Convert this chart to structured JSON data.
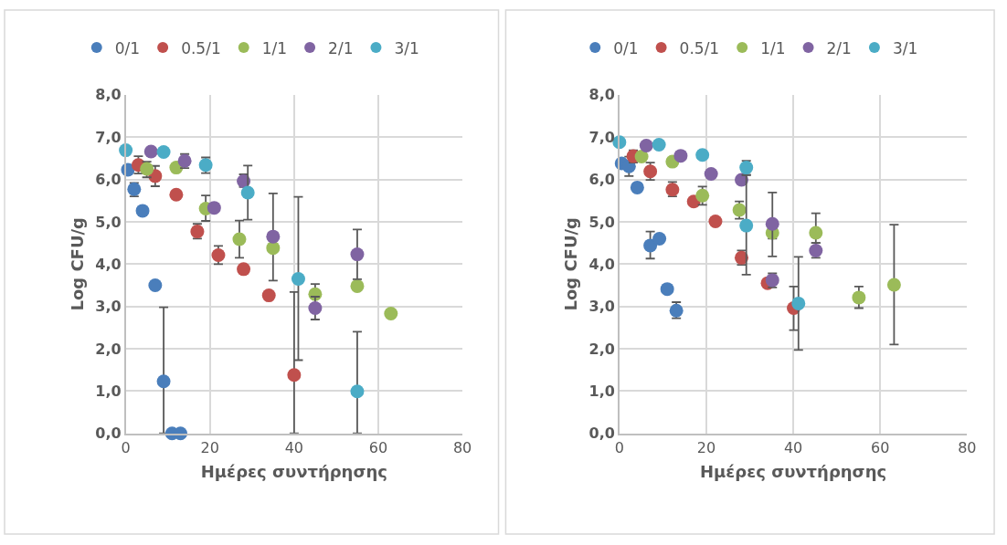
{
  "chart_data": [
    {
      "type": "scatter",
      "xlabel": "Ημέρες συντήρησης",
      "ylabel": "Log CFU/g",
      "legend": "top",
      "grid": true,
      "marker": "circle",
      "xlim": [
        0,
        80
      ],
      "xticks": [
        0,
        20,
        40,
        60,
        80
      ],
      "ylim": [
        0,
        8
      ],
      "yticks": [
        {
          "value": 0,
          "label": "0,0"
        },
        {
          "value": 1,
          "label": "1,0"
        },
        {
          "value": 2,
          "label": "2,0"
        },
        {
          "value": 3,
          "label": "3,0"
        },
        {
          "value": 4,
          "label": "4,0"
        },
        {
          "value": 5,
          "label": "5,0"
        },
        {
          "value": 6,
          "label": "6,0"
        },
        {
          "value": 7,
          "label": "7,0"
        },
        {
          "value": 8,
          "label": "8,0"
        }
      ],
      "series": [
        {
          "name": "0/1",
          "color": "#4a7ebb",
          "x": [
            0.5,
            2,
            4,
            7,
            9,
            11,
            13
          ],
          "values": [
            6.23,
            5.77,
            5.26,
            3.5,
            1.23,
            0,
            0
          ],
          "errors": [
            null,
            [
              5.6,
              5.92
            ],
            null,
            null,
            [
              0,
              2.98
            ],
            null,
            null
          ]
        },
        {
          "name": "0.5/1",
          "color": "#c0504d",
          "x": [
            3,
            7,
            12,
            17,
            22,
            28,
            34,
            40
          ],
          "values": [
            6.34,
            6.08,
            5.64,
            4.77,
            4.21,
            3.88,
            3.26,
            1.38
          ],
          "errors": [
            [
              6.14,
              6.55
            ],
            [
              5.84,
              6.32
            ],
            null,
            [
              4.6,
              4.95
            ],
            [
              4.0,
              4.43
            ],
            null,
            null,
            [
              0,
              3.34
            ]
          ]
        },
        {
          "name": "1/1",
          "color": "#9bbb59",
          "x": [
            5,
            12,
            19,
            27,
            35,
            45,
            55,
            63
          ],
          "values": [
            6.25,
            6.28,
            5.31,
            4.59,
            4.38,
            3.29,
            3.48,
            2.83
          ],
          "errors": [
            [
              6.05,
              6.42
            ],
            null,
            [
              5.02,
              5.62
            ],
            [
              4.15,
              5.03
            ],
            [
              3.61,
              5.67
            ],
            [
              3.29,
              3.53
            ],
            null,
            null
          ]
        },
        {
          "name": "2/1",
          "color": "#8064a2",
          "x": [
            6,
            14,
            21,
            28,
            35,
            45,
            55
          ],
          "values": [
            6.66,
            6.44,
            5.33,
            5.96,
            4.65,
            2.96,
            4.23
          ],
          "errors": [
            null,
            [
              6.27,
              6.6
            ],
            null,
            [
              5.82,
              6.12
            ],
            null,
            [
              2.69,
              3.23
            ],
            [
              3.64,
              4.82
            ]
          ]
        },
        {
          "name": "3/1",
          "color": "#4bacc6",
          "x": [
            0,
            9,
            19,
            29,
            41,
            55
          ],
          "values": [
            6.69,
            6.65,
            6.34,
            5.69,
            3.65,
            0.99
          ],
          "errors": [
            null,
            null,
            [
              6.15,
              6.52
            ],
            [
              5.05,
              6.33
            ],
            [
              1.73,
              5.59
            ],
            [
              0,
              2.4
            ]
          ]
        }
      ]
    },
    {
      "type": "scatter",
      "xlabel": "Ημέρες συντήρησης",
      "ylabel": "Log CFU/g",
      "legend": "top",
      "grid": true,
      "marker": "circle",
      "xlim": [
        0,
        80
      ],
      "xticks": [
        0,
        20,
        40,
        60,
        80
      ],
      "ylim": [
        0,
        8
      ],
      "yticks": [
        {
          "value": 0,
          "label": "0,0"
        },
        {
          "value": 1,
          "label": "1,0"
        },
        {
          "value": 2,
          "label": "2,0"
        },
        {
          "value": 3,
          "label": "3,0"
        },
        {
          "value": 4,
          "label": "4,0"
        },
        {
          "value": 5,
          "label": "5,0"
        },
        {
          "value": 6,
          "label": "6,0"
        },
        {
          "value": 7,
          "label": "7,0"
        },
        {
          "value": 8,
          "label": "8,0"
        }
      ],
      "series": [
        {
          "name": "0/1",
          "color": "#4a7ebb",
          "x": [
            0.5,
            2.2,
            4.1,
            7.1,
            9.2,
            11,
            13.1
          ],
          "values": [
            6.38,
            6.31,
            5.81,
            4.44,
            4.6,
            3.41,
            2.9
          ],
          "errors": [
            null,
            [
              6.08,
              6.54
            ],
            null,
            [
              4.13,
              4.77
            ],
            null,
            null,
            [
              2.72,
              3.1
            ]
          ]
        },
        {
          "name": "0.5/1",
          "color": "#c0504d",
          "x": [
            3.2,
            7.1,
            12.2,
            17.1,
            22.1,
            28.1,
            34.1,
            40.1
          ],
          "values": [
            6.55,
            6.19,
            5.76,
            5.48,
            5.01,
            4.15,
            3.55,
            2.96
          ],
          "errors": [
            [
              6.4,
              6.69
            ],
            [
              5.99,
              6.4
            ],
            [
              5.6,
              5.94
            ],
            null,
            null,
            [
              3.98,
              4.32
            ],
            null,
            [
              2.44,
              3.47
            ]
          ]
        },
        {
          "name": "1/1",
          "color": "#9bbb59",
          "x": [
            5.1,
            12.2,
            19.1,
            27.6,
            35.2,
            45.2,
            55.1,
            63.2
          ],
          "values": [
            6.54,
            6.42,
            5.62,
            5.28,
            4.74,
            4.74,
            3.21,
            3.51
          ],
          "errors": [
            null,
            null,
            [
              5.4,
              5.83
            ],
            [
              5.07,
              5.48
            ],
            [
              4.6,
              4.74
            ],
            [
              4.5,
              5.2
            ],
            [
              2.96,
              3.47
            ],
            [
              2.1,
              4.93
            ]
          ]
        },
        {
          "name": "2/1",
          "color": "#8064a2",
          "x": [
            6.2,
            14.1,
            21.1,
            28.1,
            35.2,
            35.2,
            45.2
          ],
          "values": [
            6.8,
            6.56,
            6.13,
            5.99,
            4.95,
            3.62,
            4.32
          ],
          "errors": [
            null,
            null,
            null,
            null,
            [
              4.18,
              5.69
            ],
            [
              3.45,
              3.78
            ],
            [
              4.15,
              4.5
            ]
          ]
        },
        {
          "name": "3/1",
          "color": "#4bacc6",
          "x": [
            0,
            9.1,
            19.1,
            29.2,
            29.2,
            41.2
          ],
          "values": [
            6.88,
            6.82,
            6.58,
            6.28,
            4.91,
            3.07
          ],
          "errors": [
            null,
            null,
            null,
            [
              6.11,
              6.44
            ],
            [
              3.75,
              6.1
            ],
            [
              1.97,
              4.17
            ]
          ]
        }
      ]
    }
  ]
}
